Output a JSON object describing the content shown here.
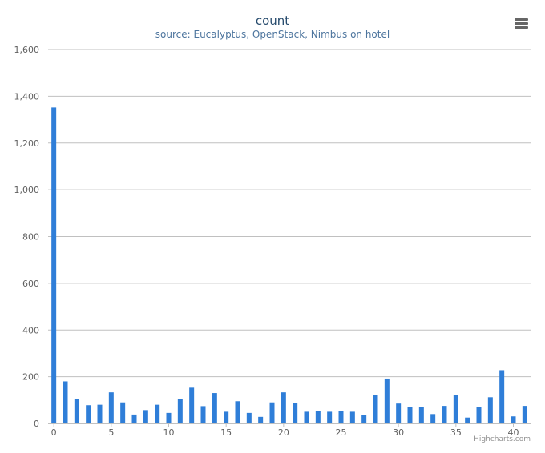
{
  "header": {
    "title": "count",
    "subtitle": "source: Eucalyptus, OpenStack, Nimbus on hotel"
  },
  "toolbar": {
    "menu_icon": "hamburger-menu-icon"
  },
  "credits": {
    "label": "Highcharts.com"
  },
  "colors": {
    "bar": "#2f7ed8",
    "grid": "#c0c0c0",
    "axis_label": "#606060"
  },
  "chart_data": {
    "type": "bar",
    "title": "count",
    "subtitle": "source: Eucalyptus, OpenStack, Nimbus on hotel",
    "x": [
      0,
      1,
      2,
      3,
      4,
      5,
      6,
      7,
      8,
      9,
      10,
      11,
      12,
      13,
      14,
      15,
      16,
      17,
      18,
      19,
      20,
      21,
      22,
      23,
      24,
      25,
      26,
      27,
      28,
      29,
      30,
      31,
      32,
      33,
      34,
      35,
      36,
      37,
      38,
      39,
      40,
      41
    ],
    "values": [
      1352,
      180,
      105,
      78,
      80,
      133,
      90,
      38,
      57,
      80,
      45,
      105,
      153,
      74,
      130,
      50,
      95,
      45,
      28,
      90,
      133,
      87,
      50,
      52,
      50,
      53,
      50,
      35,
      120,
      192,
      85,
      70,
      70,
      40,
      75,
      122,
      25,
      70,
      112,
      228,
      30,
      75
    ],
    "xlabel": "",
    "ylabel": "",
    "ylim": [
      0,
      1600
    ],
    "yticks": [
      0,
      200,
      400,
      600,
      800,
      1000,
      1200,
      1400,
      1600
    ],
    "ytick_labels": [
      "0",
      "200",
      "400",
      "600",
      "800",
      "1,000",
      "1,200",
      "1,400",
      "1,600"
    ],
    "xticks": [
      0,
      5,
      10,
      15,
      20,
      25,
      30,
      35,
      40
    ],
    "xtick_labels": [
      "0",
      "5",
      "10",
      "15",
      "20",
      "25",
      "30",
      "35",
      "40"
    ],
    "grid": true,
    "legend": "none"
  }
}
